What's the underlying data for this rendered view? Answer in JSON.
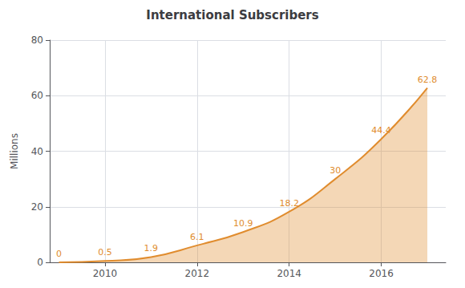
{
  "chart_data": {
    "type": "area",
    "title": "International Subscribers",
    "x": [
      2009,
      2010,
      2011,
      2012,
      2013,
      2014,
      2015,
      2016,
      2017
    ],
    "values": [
      0,
      0.5,
      1.9,
      6.1,
      10.9,
      18.2,
      30,
      44.4,
      62.8
    ],
    "color": "#e08c2e",
    "ylabel": "Millions",
    "xlim": [
      2008.8,
      2017.4
    ],
    "xticks": [
      2010,
      2012,
      2014,
      2016
    ],
    "ylim": [
      0,
      80
    ],
    "yticks": [
      0,
      20,
      40,
      60,
      80
    ],
    "grid": true,
    "data_labels": true
  }
}
